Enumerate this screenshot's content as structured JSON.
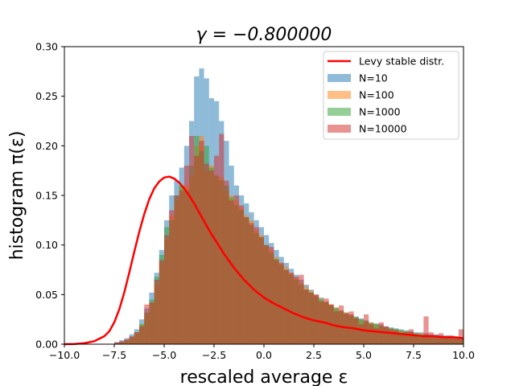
{
  "chart_data": {
    "type": "bar",
    "title": "γ = −0.800000",
    "xlabel": "rescaled average ε",
    "ylabel": "histogram π(ε)",
    "xlim": [
      -10.0,
      10.0
    ],
    "ylim": [
      0.0,
      0.3
    ],
    "x_ticks": [
      -10.0,
      -7.5,
      -5.0,
      -2.5,
      0.0,
      2.5,
      5.0,
      7.5,
      10.0
    ],
    "x_tick_labels": [
      "−10.0",
      "−7.5",
      "−5.0",
      "−2.5",
      "0.0",
      "2.5",
      "5.0",
      "7.5",
      "10.0"
    ],
    "y_ticks": [
      0.0,
      0.05,
      0.1,
      0.15,
      0.2,
      0.25,
      0.3
    ],
    "y_tick_labels": [
      "0.00",
      "0.05",
      "0.10",
      "0.15",
      "0.20",
      "0.25",
      "0.30"
    ],
    "grid": false,
    "legend_position": "top-right",
    "bin_width": 0.25,
    "bin_start": -10.0,
    "series": [
      {
        "name": "N=10",
        "color": "#1f77b4",
        "opacity": 0.5,
        "values": [
          0,
          0,
          0,
          0,
          0,
          0,
          0,
          0,
          0,
          0,
          0.002,
          0.004,
          0.006,
          0.01,
          0.015,
          0.025,
          0.036,
          0.052,
          0.072,
          0.095,
          0.125,
          0.15,
          0.165,
          0.178,
          0.2,
          0.225,
          0.27,
          0.278,
          0.268,
          0.248,
          0.245,
          0.225,
          0.205,
          0.18,
          0.16,
          0.15,
          0.142,
          0.133,
          0.125,
          0.118,
          0.11,
          0.102,
          0.095,
          0.088,
          0.082,
          0.076,
          0.07,
          0.065,
          0.06,
          0.055,
          0.05,
          0.047,
          0.043,
          0.04,
          0.037,
          0.034,
          0.032,
          0.03,
          0.028,
          0.026,
          0.024,
          0.022,
          0.021,
          0.02,
          0.018,
          0.017,
          0.016,
          0.015,
          0.014,
          0.013,
          0.012,
          0.012,
          0.011,
          0.01,
          0.01,
          0.009,
          0.009,
          0.008,
          0.008,
          0.007
        ]
      },
      {
        "name": "N=100",
        "color": "#ff7f0e",
        "opacity": 0.5,
        "values": [
          0,
          0,
          0,
          0,
          0,
          0,
          0,
          0,
          0,
          0,
          0.001,
          0.002,
          0.004,
          0.007,
          0.012,
          0.02,
          0.03,
          0.042,
          0.06,
          0.082,
          0.105,
          0.13,
          0.145,
          0.16,
          0.16,
          0.17,
          0.2,
          0.21,
          0.175,
          0.18,
          0.17,
          0.168,
          0.155,
          0.15,
          0.145,
          0.138,
          0.13,
          0.125,
          0.115,
          0.11,
          0.1,
          0.095,
          0.088,
          0.082,
          0.078,
          0.072,
          0.067,
          0.062,
          0.058,
          0.054,
          0.05,
          0.046,
          0.043,
          0.04,
          0.037,
          0.034,
          0.032,
          0.03,
          0.027,
          0.025,
          0.023,
          0.022,
          0.02,
          0.019,
          0.017,
          0.016,
          0.015,
          0.014,
          0.013,
          0.012,
          0.011,
          0.011,
          0.01,
          0.009,
          0.009,
          0.008,
          0.008,
          0.007,
          0.007,
          0.006
        ]
      },
      {
        "name": "N=1000",
        "color": "#2ca02c",
        "opacity": 0.5,
        "values": [
          0,
          0,
          0,
          0,
          0,
          0,
          0,
          0,
          0,
          0,
          0.001,
          0.002,
          0.004,
          0.007,
          0.012,
          0.02,
          0.032,
          0.045,
          0.068,
          0.09,
          0.118,
          0.125,
          0.15,
          0.16,
          0.155,
          0.18,
          0.21,
          0.195,
          0.2,
          0.178,
          0.17,
          0.165,
          0.16,
          0.148,
          0.14,
          0.135,
          0.128,
          0.12,
          0.112,
          0.108,
          0.1,
          0.092,
          0.086,
          0.08,
          0.075,
          0.07,
          0.065,
          0.06,
          0.055,
          0.052,
          0.048,
          0.045,
          0.042,
          0.039,
          0.036,
          0.033,
          0.031,
          0.029,
          0.027,
          0.025,
          0.023,
          0.021,
          0.02,
          0.018,
          0.017,
          0.016,
          0.015,
          0.014,
          0.013,
          0.012,
          0.011,
          0.01,
          0.01,
          0.009,
          0.009,
          0.008,
          0.008,
          0.007,
          0.007,
          0.006
        ]
      },
      {
        "name": "N=10000",
        "color": "#d62728",
        "opacity": 0.5,
        "values": [
          0,
          0,
          0,
          0,
          0,
          0,
          0,
          0,
          0,
          0,
          0.002,
          0.003,
          0.005,
          0.008,
          0.012,
          0.018,
          0.04,
          0.042,
          0.065,
          0.085,
          0.11,
          0.135,
          0.15,
          0.155,
          0.18,
          0.21,
          0.19,
          0.205,
          0.182,
          0.175,
          0.19,
          0.212,
          0.165,
          0.145,
          0.15,
          0.14,
          0.128,
          0.122,
          0.118,
          0.108,
          0.1,
          0.098,
          0.085,
          0.082,
          0.075,
          0.072,
          0.068,
          0.07,
          0.055,
          0.052,
          0.05,
          0.043,
          0.046,
          0.04,
          0.033,
          0.039,
          0.031,
          0.033,
          0.026,
          0.02,
          0.03,
          0.02,
          0.016,
          0.022,
          0.018,
          0.015,
          0.014,
          0.011,
          0.012,
          0.015,
          0.01,
          0.007,
          0.028,
          0.012,
          0.009,
          0.011,
          0.008,
          0.009,
          0.006,
          0.015
        ]
      }
    ],
    "curve": {
      "name": "Levy stable distr.",
      "color": "#ff0000",
      "line_width": 2.5,
      "x": [
        -10,
        -9.5,
        -9,
        -8.5,
        -8,
        -7.75,
        -7.5,
        -7.25,
        -7,
        -6.75,
        -6.5,
        -6.25,
        -6,
        -5.75,
        -5.5,
        -5.25,
        -5,
        -4.75,
        -4.5,
        -4.25,
        -4,
        -3.75,
        -3.5,
        -3.25,
        -3,
        -2.75,
        -2.5,
        -2.25,
        -2,
        -1.75,
        -1.5,
        -1.25,
        -1,
        -0.5,
        0,
        0.5,
        1,
        1.5,
        2,
        2.5,
        3,
        3.5,
        4,
        4.5,
        5,
        5.5,
        6,
        6.5,
        7,
        7.5,
        8,
        8.5,
        9,
        9.5,
        10
      ],
      "y": [
        0,
        0.0002,
        0.001,
        0.003,
        0.008,
        0.013,
        0.022,
        0.035,
        0.052,
        0.072,
        0.093,
        0.113,
        0.131,
        0.146,
        0.157,
        0.164,
        0.168,
        0.169,
        0.167,
        0.163,
        0.157,
        0.15,
        0.142,
        0.133,
        0.124,
        0.115,
        0.107,
        0.099,
        0.091,
        0.084,
        0.077,
        0.071,
        0.065,
        0.055,
        0.047,
        0.041,
        0.036,
        0.031,
        0.027,
        0.024,
        0.022,
        0.019,
        0.017,
        0.016,
        0.014,
        0.013,
        0.012,
        0.011,
        0.01,
        0.009,
        0.008,
        0.008,
        0.007,
        0.007,
        0.006
      ]
    }
  }
}
